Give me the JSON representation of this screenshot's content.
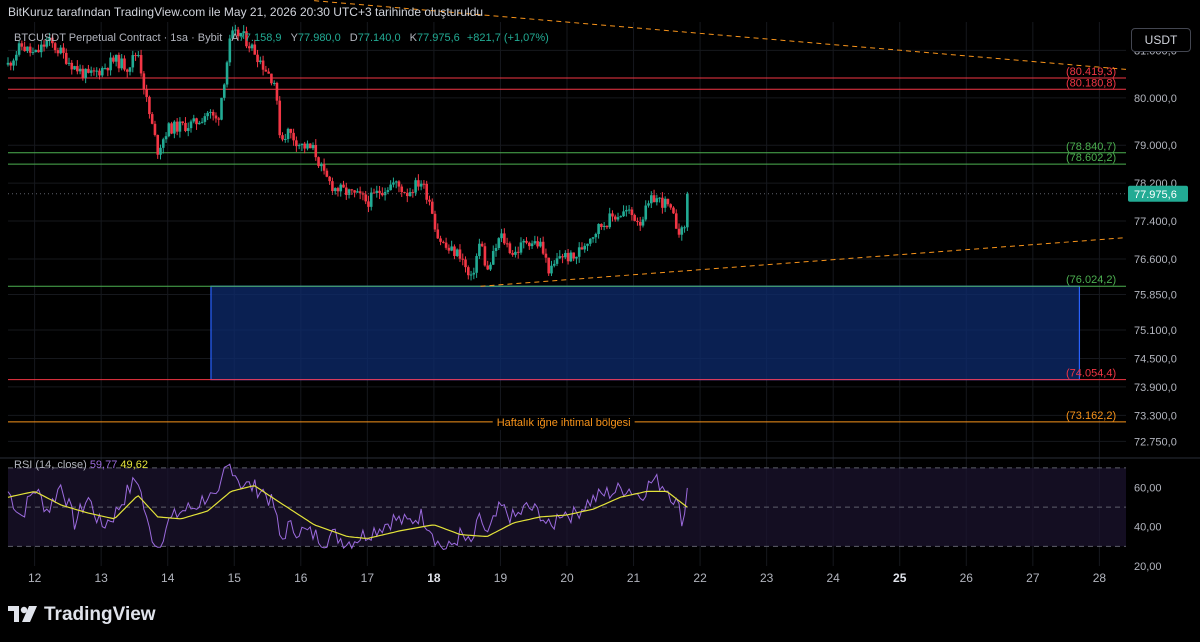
{
  "header_note": "BitKuruz tarafından TradingView.com ile May 21, 2026 20:30 UTC+3 tarihinde oluşturuldu",
  "legend": {
    "symbol": "BTCUSDT Perpetual Contract · 1sa · Bybit",
    "o_label": "A",
    "o_value": "77.158,9",
    "h_label": "Y",
    "h_value": "77.980,0",
    "l_label": "D",
    "l_value": "77.140,0",
    "c_label": "K",
    "c_value": "77.975,6",
    "change": "+821,7 (+1,07%)"
  },
  "currency": "USDT",
  "brand": "TradingView",
  "colors": {
    "up": "#22ab94",
    "down": "#f23645",
    "rsi": "#9c6bde",
    "rsi_ma": "#e3e33a",
    "support": "#4caf50",
    "resistance": "#f23645",
    "zone": "#0d2b6e",
    "zone_border": "#2962ff",
    "trend": "#f7931a",
    "label_text": "#f7931a"
  },
  "chart_data": [
    {
      "type": "candlestick",
      "title": "BTCUSDT Perpetual Contract · 1sa · Bybit",
      "x_ticks": [
        "12",
        "13",
        "14",
        "15",
        "16",
        "17",
        "18",
        "19",
        "20",
        "21",
        "22",
        "23",
        "24",
        "25",
        "26",
        "27",
        "28"
      ],
      "x_range_days": [
        11.6,
        28.4
      ],
      "y_ticks": [
        "81.000,0",
        "80.000,0",
        "79.000,0",
        "78.200,0",
        "77.400,0",
        "76.600,0",
        "75.850,0",
        "75.100,0",
        "74.500,0",
        "73.900,0",
        "73.300,0",
        "72.750,0"
      ],
      "y_range": [
        72400,
        81600
      ],
      "close_anchors": [
        [
          11.6,
          80700
        ],
        [
          11.8,
          81100
        ],
        [
          12.0,
          80900
        ],
        [
          12.2,
          81200
        ],
        [
          12.4,
          80950
        ],
        [
          12.6,
          80650
        ],
        [
          12.8,
          80450
        ],
        [
          13.0,
          80600
        ],
        [
          13.2,
          80800
        ],
        [
          13.4,
          80650
        ],
        [
          13.55,
          81000
        ],
        [
          13.7,
          79800
        ],
        [
          13.85,
          78900
        ],
        [
          14.0,
          79350
        ],
        [
          14.2,
          79400
        ],
        [
          14.4,
          79450
        ],
        [
          14.6,
          79700
        ],
        [
          14.75,
          79500
        ],
        [
          14.85,
          80400
        ],
        [
          14.95,
          81300
        ],
        [
          15.1,
          81350
        ],
        [
          15.3,
          81000
        ],
        [
          15.45,
          80650
        ],
        [
          15.6,
          80350
        ],
        [
          15.7,
          79100
        ],
        [
          15.8,
          79300
        ],
        [
          16.0,
          79000
        ],
        [
          16.2,
          78900
        ],
        [
          16.35,
          78350
        ],
        [
          16.5,
          78100
        ],
        [
          16.7,
          78000
        ],
        [
          16.9,
          77900
        ],
        [
          17.0,
          77800
        ],
        [
          17.2,
          78050
        ],
        [
          17.4,
          78200
        ],
        [
          17.6,
          78000
        ],
        [
          17.8,
          78250
        ],
        [
          17.95,
          77800
        ],
        [
          18.05,
          77100
        ],
        [
          18.2,
          76800
        ],
        [
          18.4,
          76700
        ],
        [
          18.55,
          76100
        ],
        [
          18.7,
          77000
        ],
        [
          18.8,
          76300
        ],
        [
          19.0,
          77100
        ],
        [
          19.2,
          76700
        ],
        [
          19.4,
          77000
        ],
        [
          19.6,
          76900
        ],
        [
          19.75,
          76300
        ],
        [
          19.9,
          76700
        ],
        [
          20.1,
          76600
        ],
        [
          20.3,
          77000
        ],
        [
          20.5,
          77300
        ],
        [
          20.7,
          77500
        ],
        [
          20.9,
          77600
        ],
        [
          21.1,
          77400
        ],
        [
          21.3,
          77900
        ],
        [
          21.5,
          77750
        ],
        [
          21.65,
          77300
        ],
        [
          21.75,
          77100
        ],
        [
          21.82,
          77975.6
        ]
      ],
      "last_price": "77.975,6",
      "horizontal_levels": [
        {
          "value": 80419.3,
          "label": "(80.419,3)",
          "kind": "resistance"
        },
        {
          "value": 80180.8,
          "label": "(80.180,8)",
          "kind": "resistance"
        },
        {
          "value": 78840.7,
          "label": "(78.840,7)",
          "kind": "support"
        },
        {
          "value": 78602.2,
          "label": "(78.602,2)",
          "kind": "support"
        },
        {
          "value": 76024.2,
          "label": "(76.024,2)",
          "kind": "support"
        },
        {
          "value": 74054.4,
          "label": "(74.054,4)",
          "kind": "resistance"
        },
        {
          "value": 73162.2,
          "label": "(73.162,2)",
          "kind": "trend"
        }
      ],
      "zone": {
        "from_day": 14.65,
        "to_day": 27.7,
        "top": 76024.2,
        "bottom": 74054.4
      },
      "zone_caption": "Haftalık iğne ihtimal bölgesi",
      "trendlines": [
        {
          "from": [
            16.2,
            82050
          ],
          "to": [
            28.4,
            80600
          ],
          "style": "dashed"
        },
        {
          "from": [
            18.7,
            76024
          ],
          "to": [
            28.4,
            77050
          ],
          "style": "dashed"
        }
      ]
    },
    {
      "type": "line",
      "title": "RSI (14, close)",
      "rsi_value": "59,77",
      "rsi_ma_value": "49,62",
      "y_ticks": [
        "60,00",
        "40,00",
        "20,00"
      ],
      "y_range": [
        20,
        75
      ],
      "bands": [
        70,
        50,
        30
      ],
      "rsi_anchors": [
        [
          11.6,
          58
        ],
        [
          11.8,
          45
        ],
        [
          12.0,
          60
        ],
        [
          12.2,
          48
        ],
        [
          12.4,
          62
        ],
        [
          12.6,
          42
        ],
        [
          12.8,
          55
        ],
        [
          13.0,
          40
        ],
        [
          13.2,
          46
        ],
        [
          13.4,
          58
        ],
        [
          13.55,
          65
        ],
        [
          13.7,
          40
        ],
        [
          13.85,
          30
        ],
        [
          14.0,
          42
        ],
        [
          14.2,
          48
        ],
        [
          14.4,
          50
        ],
        [
          14.6,
          56
        ],
        [
          14.75,
          52
        ],
        [
          14.85,
          68
        ],
        [
          14.95,
          72
        ],
        [
          15.1,
          62
        ],
        [
          15.3,
          60
        ],
        [
          15.45,
          58
        ],
        [
          15.6,
          50
        ],
        [
          15.7,
          32
        ],
        [
          15.8,
          40
        ],
        [
          16.0,
          38
        ],
        [
          16.2,
          36
        ],
        [
          16.35,
          33
        ],
        [
          16.5,
          36
        ],
        [
          16.7,
          32
        ],
        [
          16.9,
          35
        ],
        [
          17.2,
          40
        ],
        [
          17.4,
          44
        ],
        [
          17.6,
          42
        ],
        [
          17.8,
          46
        ],
        [
          17.95,
          40
        ],
        [
          18.05,
          32
        ],
        [
          18.2,
          28
        ],
        [
          18.4,
          36
        ],
        [
          18.55,
          30
        ],
        [
          18.7,
          45
        ],
        [
          18.8,
          35
        ],
        [
          19.0,
          50
        ],
        [
          19.2,
          44
        ],
        [
          19.4,
          50
        ],
        [
          19.6,
          47
        ],
        [
          19.75,
          38
        ],
        [
          19.9,
          48
        ],
        [
          20.1,
          46
        ],
        [
          20.3,
          52
        ],
        [
          20.5,
          56
        ],
        [
          20.7,
          58
        ],
        [
          20.9,
          60
        ],
        [
          21.1,
          56
        ],
        [
          21.3,
          64
        ],
        [
          21.5,
          60
        ],
        [
          21.65,
          52
        ],
        [
          21.75,
          42
        ],
        [
          21.82,
          59.77
        ]
      ],
      "ma_anchors": [
        [
          11.6,
          55
        ],
        [
          12.0,
          58
        ],
        [
          12.4,
          51
        ],
        [
          12.8,
          47
        ],
        [
          13.2,
          44
        ],
        [
          13.55,
          56
        ],
        [
          13.85,
          45
        ],
        [
          14.2,
          44
        ],
        [
          14.6,
          48
        ],
        [
          14.95,
          58
        ],
        [
          15.3,
          61
        ],
        [
          15.7,
          52
        ],
        [
          16.2,
          41
        ],
        [
          16.7,
          35
        ],
        [
          17.0,
          34
        ],
        [
          17.5,
          38
        ],
        [
          18.0,
          41
        ],
        [
          18.4,
          36
        ],
        [
          18.8,
          35
        ],
        [
          19.2,
          42
        ],
        [
          19.6,
          45
        ],
        [
          20.0,
          46
        ],
        [
          20.4,
          49
        ],
        [
          20.8,
          55
        ],
        [
          21.2,
          58
        ],
        [
          21.5,
          58
        ],
        [
          21.82,
          49.62
        ]
      ]
    }
  ]
}
